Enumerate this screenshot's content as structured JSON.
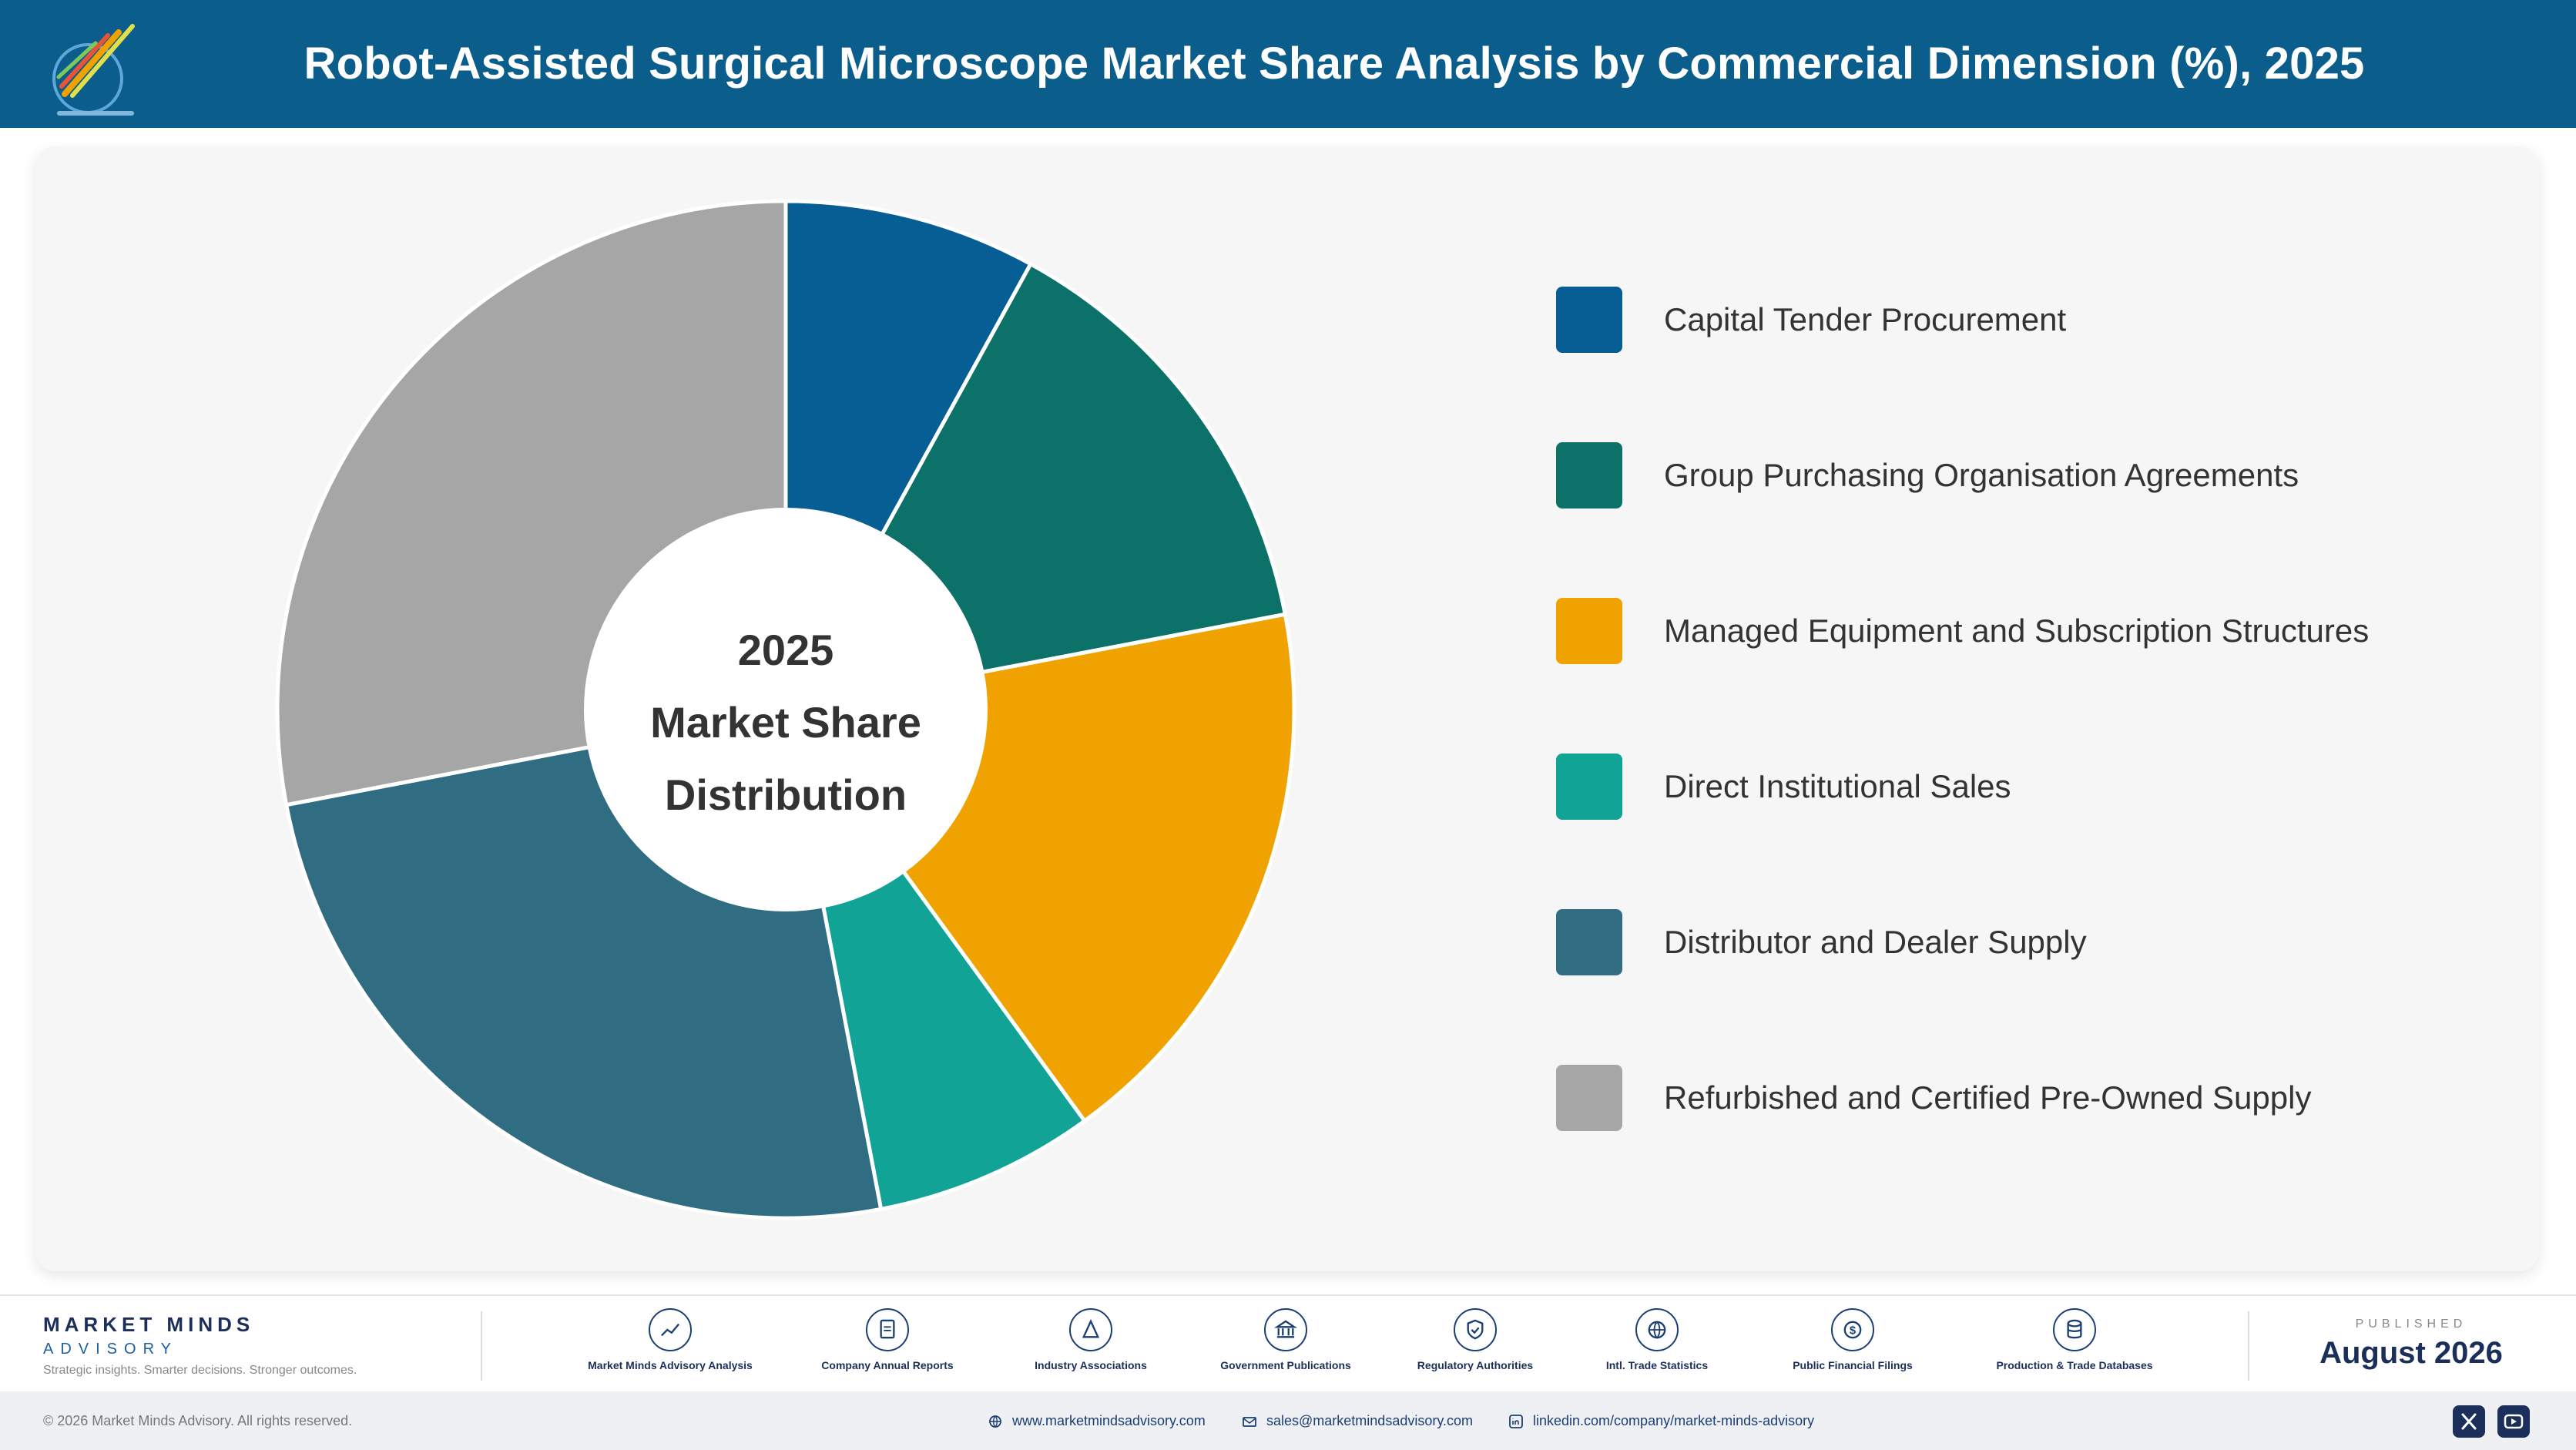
{
  "header": {
    "title": "Robot-Assisted Surgical Microscope Market Share Analysis by Commercial Dimension (%), 2025",
    "background": "#0b5d8c"
  },
  "chart_data": {
    "type": "pie",
    "variant": "donut",
    "center_text": [
      "2025",
      "Market Share",
      "Distribution"
    ],
    "categories": [
      "Capital Tender Procurement",
      "Group Purchasing Organisation Agreements",
      "Managed Equipment and Subscription Structures",
      "Direct Institutional Sales",
      "Distributor and Dealer Supply",
      "Refurbished and Certified Pre-Owned Supply"
    ],
    "values": [
      8,
      14,
      18,
      7,
      25,
      28
    ],
    "colors": [
      "#075e94",
      "#0c7168",
      "#f0a300",
      "#10a396",
      "#306d82",
      "#a6a6a6"
    ],
    "legend_position": "right"
  },
  "footer": {
    "brand_name": "MARKET MINDS",
    "brand_sub": "ADVISORY",
    "brand_tagline": "Strategic insights. Smarter decisions. Stronger outcomes.",
    "sources": [
      {
        "label": "Market Minds Advisory Analysis",
        "icon": "trend-icon"
      },
      {
        "label": "Company Annual Reports",
        "icon": "document-icon"
      },
      {
        "label": "Industry Associations",
        "icon": "network-icon"
      },
      {
        "label": "Government Publications",
        "icon": "government-building-icon"
      },
      {
        "label": "Regulatory Authorities",
        "icon": "shield-check-icon"
      },
      {
        "label": "Intl. Trade Statistics",
        "icon": "globe-icon"
      },
      {
        "label": "Public Financial Filings",
        "icon": "dollar-coin-icon"
      },
      {
        "label": "Production & Trade Databases",
        "icon": "database-icon"
      }
    ],
    "published_label": "PUBLISHED",
    "published_date": "August 2026"
  },
  "bottom_bar": {
    "copyright": "© 2026 Market Minds Advisory. All rights reserved.",
    "website": "www.marketmindsadvisory.com",
    "email": "sales@marketmindsadvisory.com",
    "linkedin": "linkedin.com/company/market-minds-advisory",
    "social": [
      "x-icon",
      "youtube-icon"
    ]
  }
}
